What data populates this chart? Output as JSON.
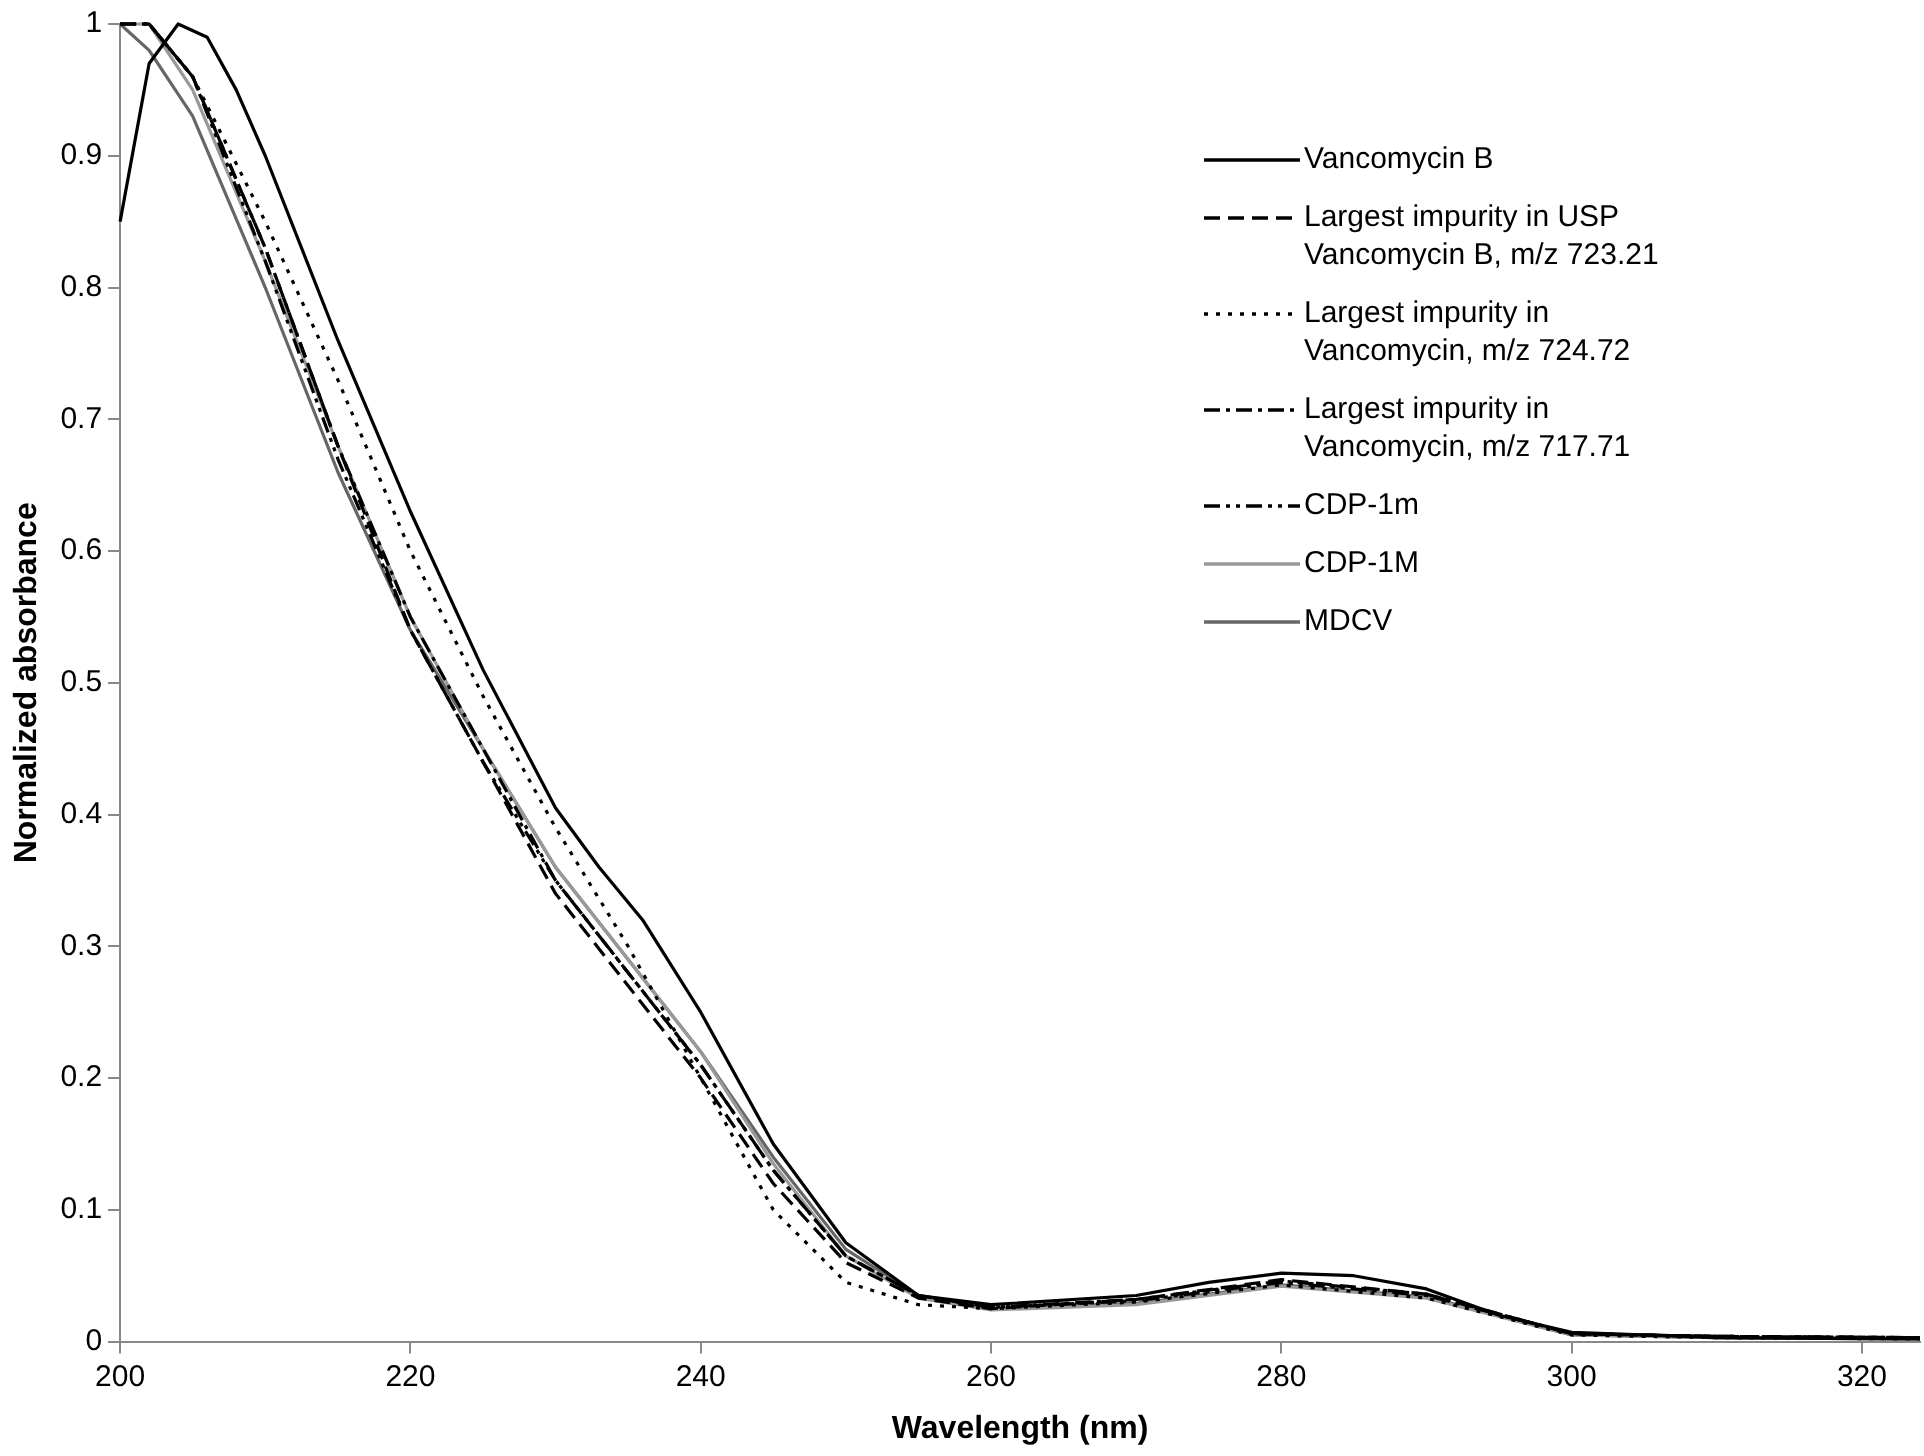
{
  "chart_data": {
    "type": "line",
    "xlabel": "Wavelength (nm)",
    "ylabel": "Normalized absorbance",
    "xlim": [
      200,
      324
    ],
    "xticks": [
      200,
      220,
      240,
      260,
      280,
      300,
      320
    ],
    "ylim": [
      0,
      1
    ],
    "yticks": [
      0,
      0.1,
      0.2,
      0.3,
      0.4,
      0.5,
      0.6,
      0.7,
      0.8,
      0.9,
      1
    ],
    "grid": false,
    "legend": "top right",
    "marker": "none",
    "series": [
      {
        "name": "Vancomycin B",
        "color": "#000000",
        "line_style": "solid",
        "x": [
          200,
          202,
          204,
          206,
          208,
          210,
          215,
          220,
          225,
          230,
          233,
          236,
          240,
          245,
          250,
          255,
          260,
          270,
          275,
          280,
          285,
          290,
          295,
          300,
          310,
          324
        ],
        "values": [
          0.85,
          0.97,
          1.0,
          0.99,
          0.95,
          0.9,
          0.76,
          0.63,
          0.51,
          0.405,
          0.36,
          0.32,
          0.25,
          0.15,
          0.075,
          0.035,
          0.028,
          0.035,
          0.045,
          0.052,
          0.05,
          0.04,
          0.02,
          0.007,
          0.003,
          0.002
        ]
      },
      {
        "name": "Largest impurity in USP Vancomycin B, m/z 723.21",
        "color": "#000000",
        "line_style": "dashed",
        "x": [
          200,
          202,
          205,
          210,
          215,
          220,
          225,
          230,
          235,
          240,
          245,
          250,
          255,
          260,
          270,
          280,
          290,
          300,
          310,
          324
        ],
        "values": [
          1.0,
          1.0,
          0.96,
          0.83,
          0.68,
          0.54,
          0.44,
          0.34,
          0.27,
          0.2,
          0.12,
          0.06,
          0.033,
          0.025,
          0.032,
          0.047,
          0.036,
          0.006,
          0.004,
          0.003
        ]
      },
      {
        "name": "Largest impurity in Vancomycin, m/z 724.72",
        "color": "#000000",
        "line_style": "dotted",
        "x": [
          200,
          202,
          205,
          210,
          215,
          220,
          225,
          230,
          235,
          240,
          245,
          250,
          255,
          260,
          270,
          280,
          290,
          300,
          310,
          324
        ],
        "values": [
          1.0,
          1.0,
          0.96,
          0.85,
          0.73,
          0.6,
          0.49,
          0.39,
          0.3,
          0.2,
          0.1,
          0.045,
          0.028,
          0.025,
          0.03,
          0.043,
          0.033,
          0.005,
          0.003,
          0.002
        ]
      },
      {
        "name": "Largest impurity in Vancomycin, m/z 717.71",
        "color": "#000000",
        "line_style": "dashdot",
        "x": [
          200,
          202,
          205,
          210,
          215,
          220,
          225,
          230,
          235,
          240,
          245,
          250,
          255,
          260,
          270,
          280,
          290,
          300,
          310,
          324
        ],
        "values": [
          1.0,
          1.0,
          0.96,
          0.83,
          0.68,
          0.55,
          0.45,
          0.35,
          0.28,
          0.21,
          0.13,
          0.065,
          0.035,
          0.026,
          0.032,
          0.046,
          0.036,
          0.006,
          0.004,
          0.003
        ]
      },
      {
        "name": "CDP-1m",
        "color": "#000000",
        "line_style": "dashdotdot",
        "x": [
          200,
          202,
          205,
          210,
          215,
          220,
          225,
          230,
          235,
          240,
          245,
          250,
          255,
          260,
          270,
          280,
          290,
          300,
          310,
          324
        ],
        "values": [
          1.0,
          1.0,
          0.96,
          0.82,
          0.67,
          0.54,
          0.44,
          0.35,
          0.28,
          0.21,
          0.13,
          0.065,
          0.035,
          0.026,
          0.031,
          0.045,
          0.035,
          0.006,
          0.004,
          0.003
        ]
      },
      {
        "name": "CDP-1M",
        "color": "#999999",
        "line_style": "solid",
        "x": [
          200,
          202,
          205,
          210,
          215,
          220,
          225,
          230,
          235,
          240,
          245,
          250,
          255,
          260,
          270,
          280,
          290,
          300,
          310,
          324
        ],
        "values": [
          1.0,
          1.0,
          0.95,
          0.82,
          0.68,
          0.55,
          0.45,
          0.36,
          0.29,
          0.22,
          0.135,
          0.065,
          0.033,
          0.024,
          0.028,
          0.042,
          0.033,
          0.005,
          0.003,
          0.002
        ]
      },
      {
        "name": "MDCV",
        "color": "#666666",
        "line_style": "solid",
        "x": [
          200,
          202,
          205,
          210,
          215,
          220,
          225,
          230,
          235,
          240,
          245,
          250,
          255,
          260,
          270,
          280,
          290,
          300,
          310,
          324
        ],
        "values": [
          1.0,
          0.98,
          0.93,
          0.8,
          0.66,
          0.54,
          0.45,
          0.36,
          0.29,
          0.22,
          0.14,
          0.07,
          0.035,
          0.025,
          0.029,
          0.043,
          0.034,
          0.005,
          0.003,
          0.002
        ]
      }
    ]
  }
}
